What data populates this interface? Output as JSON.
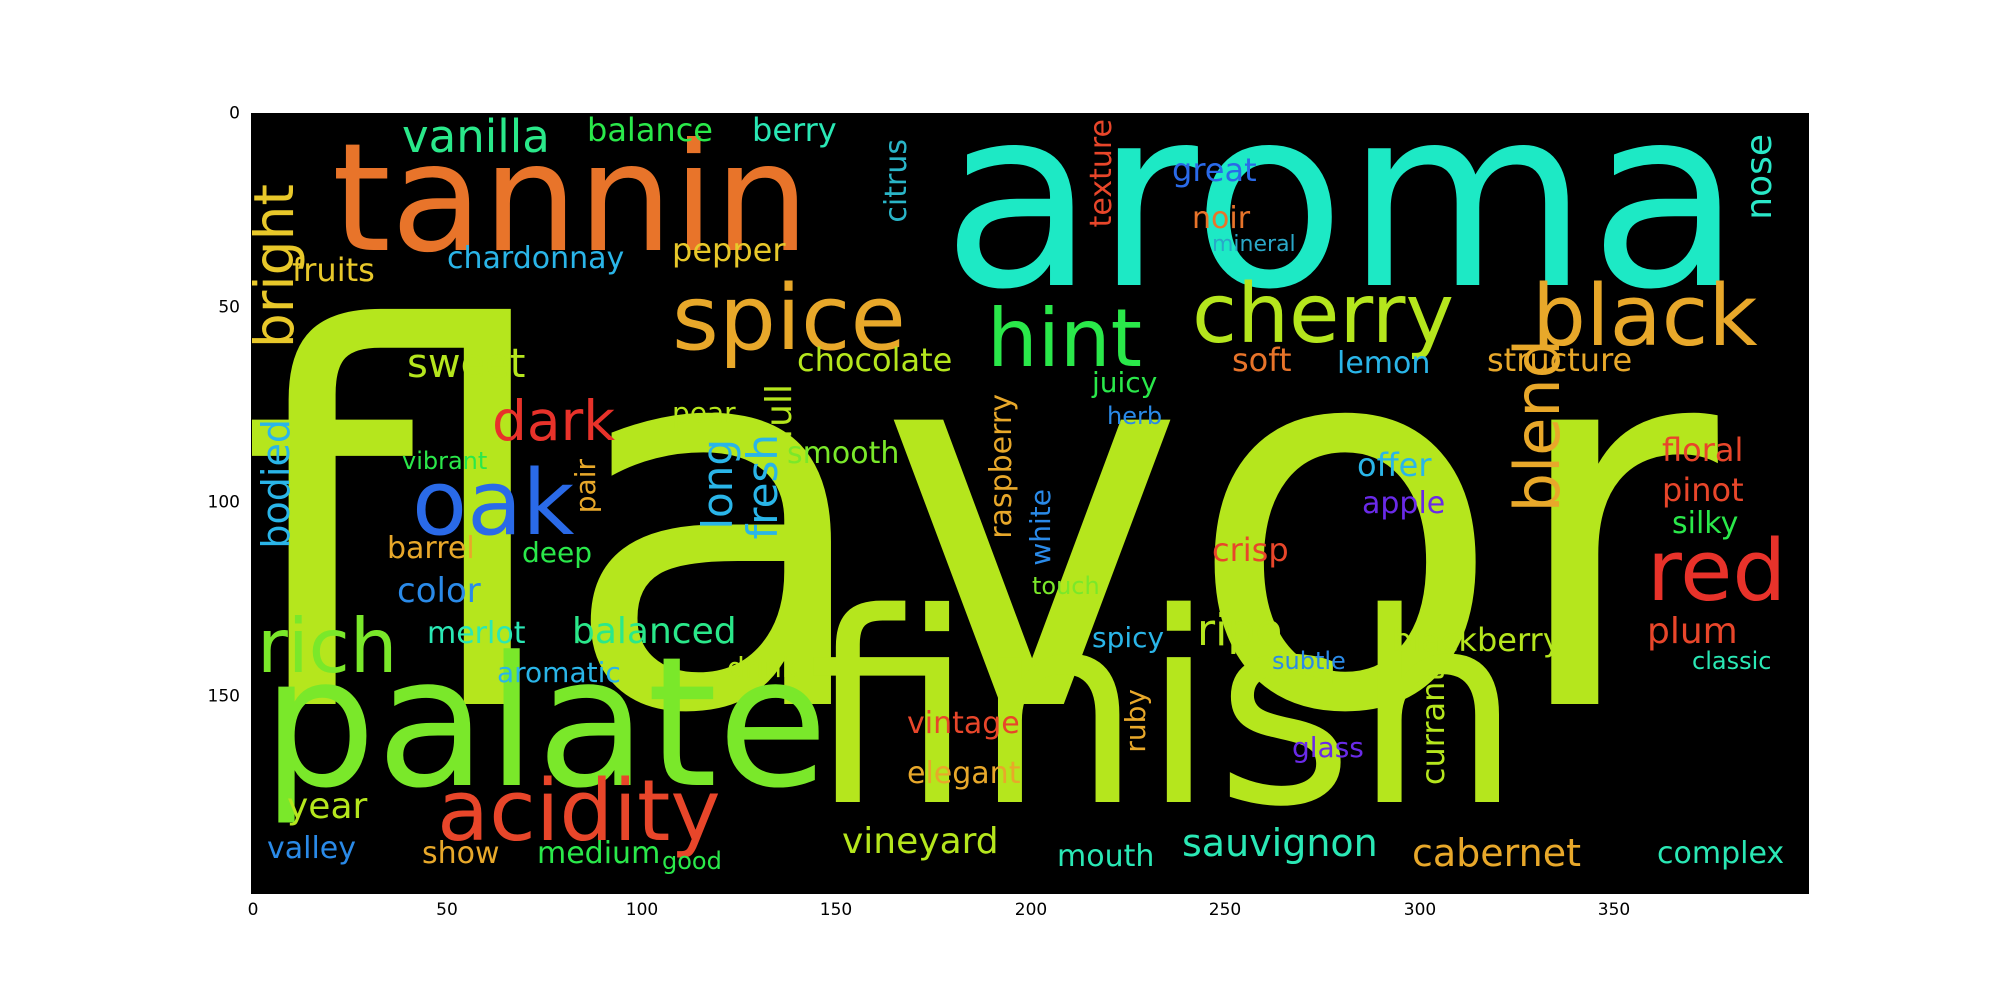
{
  "image": {
    "background": "#ffffff",
    "plot_background": "#000000"
  },
  "axes": {
    "x_ticks": [
      "0",
      "50",
      "100",
      "150",
      "200",
      "250",
      "300",
      "350"
    ],
    "y_ticks": [
      "0",
      "50",
      "100",
      "150"
    ]
  },
  "words": [
    {
      "text": "flavor",
      "color": "#b5e61d"
    },
    {
      "text": "aroma",
      "color": "#1de9c5"
    },
    {
      "text": "finish",
      "color": "#b5e61d"
    },
    {
      "text": "palate",
      "color": "#7ae82a"
    },
    {
      "text": "tannin",
      "color": "#e8742a"
    },
    {
      "text": "spice",
      "color": "#e8a82a"
    },
    {
      "text": "cherry",
      "color": "#b5e61d"
    },
    {
      "text": "black",
      "color": "#e8a82a"
    },
    {
      "text": "hint",
      "color": "#2ae84a"
    },
    {
      "text": "acidity",
      "color": "#e8462a"
    },
    {
      "text": "red",
      "color": "#e8322a"
    },
    {
      "text": "oak",
      "color": "#2a6ae8"
    },
    {
      "text": "rich",
      "color": "#7ae82a"
    },
    {
      "text": "blend",
      "color": "#e8a82a"
    },
    {
      "text": "dark",
      "color": "#e8322a"
    },
    {
      "text": "vanilla",
      "color": "#2ae88a"
    },
    {
      "text": "balance",
      "color": "#2ae84a"
    },
    {
      "text": "berry",
      "color": "#2ae8b5"
    },
    {
      "text": "bright",
      "color": "#e8c82a"
    },
    {
      "text": "fruits",
      "color": "#e8c82a"
    },
    {
      "text": "chardonnay",
      "color": "#2ab5e8"
    },
    {
      "text": "pepper",
      "color": "#e8c82a"
    },
    {
      "text": "citrus",
      "color": "#2ab5c8"
    },
    {
      "text": "texture",
      "color": "#e8462a"
    },
    {
      "text": "great",
      "color": "#2a6ae8"
    },
    {
      "text": "noir",
      "color": "#e8742a"
    },
    {
      "text": "mineral",
      "color": "#2aa8c8"
    },
    {
      "text": "nose",
      "color": "#2ae8c8"
    },
    {
      "text": "sweet",
      "color": "#b5e61d"
    },
    {
      "text": "chocolate",
      "color": "#b5e61d"
    },
    {
      "text": "structure",
      "color": "#e8a82a"
    },
    {
      "text": "soft",
      "color": "#e8742a"
    },
    {
      "text": "lemon",
      "color": "#2ab5e8"
    },
    {
      "text": "juicy",
      "color": "#2ae84a"
    },
    {
      "text": "herb",
      "color": "#2a8ae8"
    },
    {
      "text": "pear",
      "color": "#b5e61d"
    },
    {
      "text": "full",
      "color": "#b5e61d"
    },
    {
      "text": "smooth",
      "color": "#7ae82a"
    },
    {
      "text": "long",
      "color": "#2ab5e8"
    },
    {
      "text": "fresh",
      "color": "#2ab5e8"
    },
    {
      "text": "bodied",
      "color": "#2ab5e8"
    },
    {
      "text": "pair",
      "color": "#e8a82a"
    },
    {
      "text": "vibrant",
      "color": "#2ae84a"
    },
    {
      "text": "offer",
      "color": "#2ab5e8"
    },
    {
      "text": "floral",
      "color": "#e8462a"
    },
    {
      "text": "pinot",
      "color": "#e8462a"
    },
    {
      "text": "apple",
      "color": "#6a2ae8"
    },
    {
      "text": "silky",
      "color": "#2ae84a"
    },
    {
      "text": "raspberry",
      "color": "#e8a82a"
    },
    {
      "text": "white",
      "color": "#2a8ae8"
    },
    {
      "text": "barrel",
      "color": "#e8a82a"
    },
    {
      "text": "deep",
      "color": "#2ae84a"
    },
    {
      "text": "crisp",
      "color": "#e8462a"
    },
    {
      "text": "color",
      "color": "#2a8ae8"
    },
    {
      "text": "touch",
      "color": "#7ae82a"
    },
    {
      "text": "merlot",
      "color": "#2ae8b5"
    },
    {
      "text": "balanced",
      "color": "#2ae88a"
    },
    {
      "text": "spicy",
      "color": "#2ab5e8"
    },
    {
      "text": "ripe",
      "color": "#b5e61d"
    },
    {
      "text": "blackberry",
      "color": "#b5e61d"
    },
    {
      "text": "plum",
      "color": "#e8462a"
    },
    {
      "text": "aromatic",
      "color": "#2ab5e8"
    },
    {
      "text": "drink",
      "color": "#b5e61d"
    },
    {
      "text": "subtle",
      "color": "#2a8ae8"
    },
    {
      "text": "classic",
      "color": "#2ae8b5"
    },
    {
      "text": "vintage",
      "color": "#e8462a"
    },
    {
      "text": "ruby",
      "color": "#e8a82a"
    },
    {
      "text": "currant",
      "color": "#b5e61d"
    },
    {
      "text": "glass",
      "color": "#6a2ae8"
    },
    {
      "text": "elegant",
      "color": "#e8a82a"
    },
    {
      "text": "year",
      "color": "#b5e61d"
    },
    {
      "text": "valley",
      "color": "#2a8ae8"
    },
    {
      "text": "show",
      "color": "#e8a82a"
    },
    {
      "text": "medium",
      "color": "#2ae84a"
    },
    {
      "text": "good",
      "color": "#2ae84a"
    },
    {
      "text": "vineyard",
      "color": "#b5e61d"
    },
    {
      "text": "mouth",
      "color": "#2ae8b5"
    },
    {
      "text": "sauvignon",
      "color": "#2ae8b5"
    },
    {
      "text": "cabernet",
      "color": "#e8a82a"
    },
    {
      "text": "complex",
      "color": "#2ae8b5"
    }
  ]
}
